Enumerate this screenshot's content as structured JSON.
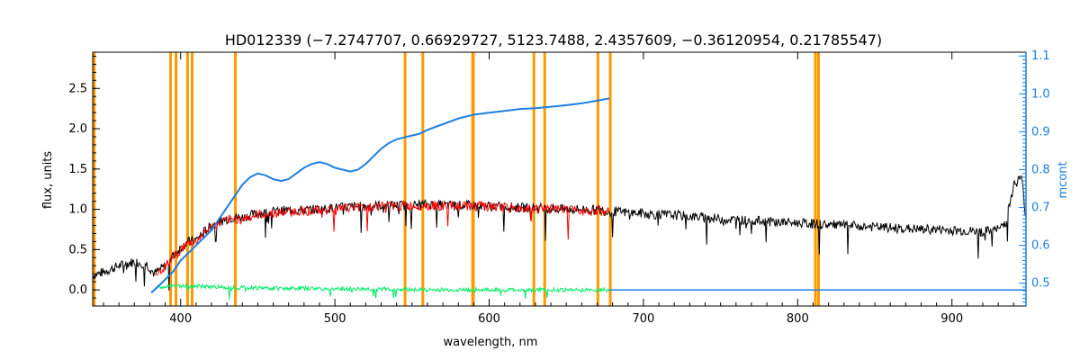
{
  "chart_data": {
    "type": "line",
    "title": "HD012339    (−7.2747707, 0.66929727, 5123.7488, 2.4357609, −0.36120954, 0.21785547)",
    "xlabel": "wavelength, nm",
    "ylabel": "flux, units",
    "y2label": "mcont",
    "xlim": [
      343,
      948
    ],
    "ylim": [
      -0.2,
      2.95
    ],
    "y2lim": [
      0.44,
      1.11
    ],
    "x_ticks": [
      400,
      500,
      600,
      700,
      800,
      900
    ],
    "y_ticks": [
      0.0,
      0.5,
      1.0,
      1.5,
      2.0,
      2.5
    ],
    "y2_ticks": [
      0.5,
      0.6,
      0.7,
      0.8,
      0.9,
      1.0,
      1.1
    ],
    "x_tick_labels": [
      "400",
      "500",
      "600",
      "700",
      "800",
      "900"
    ],
    "y_tick_labels": [
      "0.0",
      "0.5",
      "1.0",
      "1.5",
      "2.0",
      "2.5"
    ],
    "y2_tick_labels": [
      "0.5",
      "0.6",
      "0.7",
      "0.8",
      "0.9",
      "1.0",
      "1.1"
    ],
    "colors": {
      "observed": "#000000",
      "model": "#ff0000",
      "residual": "#00ee66",
      "continuum": "#1f7fe0",
      "masks": "#ff9900",
      "axis2": "#1f7fe0"
    },
    "mask_lines_nm": [
      344,
      393.5,
      397,
      404.5,
      407.5,
      435.5,
      545.5,
      557,
      589.3,
      589.8,
      629,
      636,
      670.5,
      678.5,
      811.5,
      813.5
    ],
    "series": [
      {
        "role": "observed",
        "x": [
          343,
          350,
          360,
          370,
          378,
          383,
          390,
          395,
          400,
          405,
          410,
          415,
          420,
          425,
          430,
          435,
          440,
          450,
          460,
          470,
          480,
          490,
          500,
          510,
          520,
          530,
          540,
          550,
          560,
          570,
          580,
          590,
          600,
          610,
          620,
          630,
          640,
          650,
          660,
          670,
          680,
          690,
          700,
          710,
          720,
          730,
          740,
          750,
          760,
          770,
          780,
          790,
          800,
          810,
          820,
          830,
          840,
          850,
          860,
          870,
          880,
          890,
          900,
          910,
          920,
          930,
          935,
          940,
          945,
          948
        ],
        "values": [
          0.18,
          0.22,
          0.3,
          0.35,
          0.32,
          0.2,
          0.3,
          0.42,
          0.52,
          0.6,
          0.62,
          0.72,
          0.8,
          0.85,
          0.88,
          0.9,
          0.9,
          0.95,
          0.97,
          0.99,
          0.99,
          1.0,
          1.02,
          1.03,
          1.04,
          1.05,
          1.05,
          1.05,
          1.06,
          1.05,
          1.05,
          1.05,
          1.04,
          1.03,
          1.02,
          1.02,
          1.01,
          1.0,
          1.0,
          0.99,
          0.97,
          0.96,
          0.95,
          0.93,
          0.93,
          0.91,
          0.9,
          0.88,
          0.87,
          0.86,
          0.85,
          0.84,
          0.83,
          0.82,
          0.81,
          0.8,
          0.79,
          0.78,
          0.77,
          0.76,
          0.75,
          0.75,
          0.74,
          0.73,
          0.72,
          0.75,
          0.85,
          1.3,
          1.4,
          0.9
        ]
      },
      {
        "role": "model",
        "x": [
          383,
          390,
          395,
          400,
          405,
          410,
          415,
          420,
          425,
          430,
          435,
          440,
          450,
          460,
          470,
          480,
          490,
          500,
          510,
          520,
          530,
          540,
          550,
          560,
          570,
          580,
          590,
          600,
          610,
          620,
          630,
          640,
          650,
          660,
          670,
          678
        ],
        "values": [
          0.2,
          0.28,
          0.4,
          0.5,
          0.58,
          0.6,
          0.7,
          0.78,
          0.83,
          0.86,
          0.88,
          0.88,
          0.93,
          0.95,
          0.97,
          0.98,
          0.99,
          1.01,
          1.02,
          1.03,
          1.04,
          1.04,
          1.04,
          1.05,
          1.04,
          1.04,
          1.04,
          1.03,
          1.02,
          1.01,
          1.01,
          1.0,
          0.99,
          0.99,
          0.98,
          0.98
        ]
      },
      {
        "role": "residual",
        "x": [
          383,
          400,
          420,
          440,
          460,
          480,
          500,
          520,
          540,
          560,
          580,
          600,
          620,
          640,
          660,
          678
        ],
        "values": [
          0.03,
          0.05,
          0.04,
          0.03,
          0.02,
          0.02,
          0.01,
          0.01,
          0.01,
          0.0,
          0.0,
          0.0,
          0.0,
          0.0,
          0.0,
          0.0
        ]
      },
      {
        "role": "continuum",
        "axis": "y2",
        "x": [
          381,
          385,
          390,
          395,
          400,
          405,
          410,
          420,
          430,
          440,
          445,
          450,
          455,
          460,
          465,
          470,
          475,
          480,
          485,
          490,
          495,
          500,
          505,
          510,
          515,
          520,
          525,
          530,
          535,
          540,
          545,
          550,
          555,
          560,
          570,
          580,
          590,
          600,
          610,
          620,
          630,
          640,
          650,
          660,
          670,
          678
        ],
        "values": [
          0.475,
          0.49,
          0.51,
          0.53,
          0.56,
          0.58,
          0.6,
          0.64,
          0.7,
          0.76,
          0.78,
          0.79,
          0.785,
          0.775,
          0.77,
          0.775,
          0.79,
          0.805,
          0.815,
          0.82,
          0.815,
          0.805,
          0.8,
          0.795,
          0.8,
          0.815,
          0.835,
          0.855,
          0.87,
          0.88,
          0.885,
          0.89,
          0.895,
          0.905,
          0.92,
          0.935,
          0.945,
          0.95,
          0.955,
          0.96,
          0.962,
          0.966,
          0.97,
          0.975,
          0.982,
          0.988
        ]
      }
    ]
  }
}
